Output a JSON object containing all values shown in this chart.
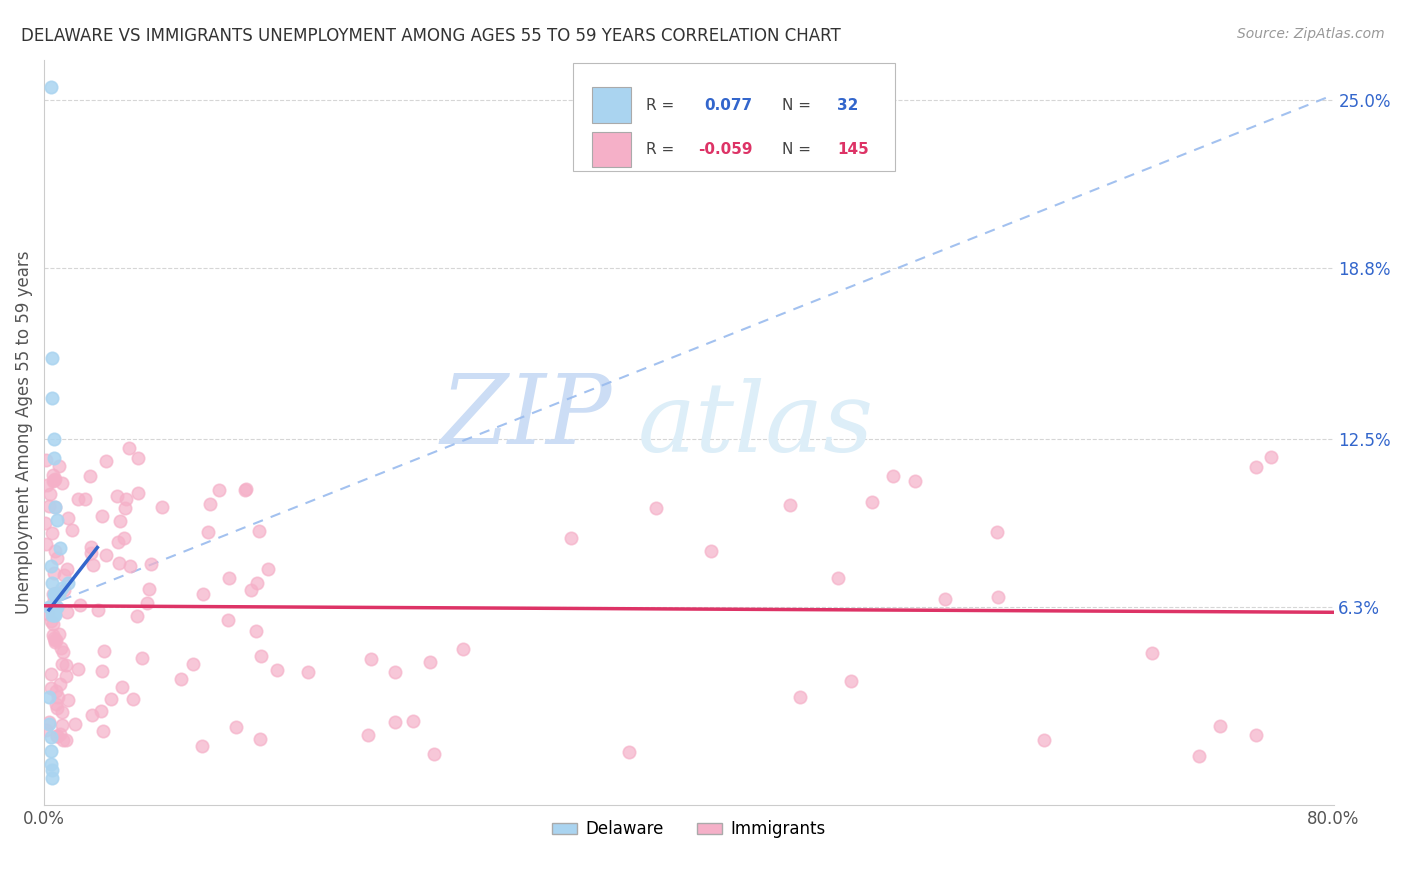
{
  "title": "DELAWARE VS IMMIGRANTS UNEMPLOYMENT AMONG AGES 55 TO 59 YEARS CORRELATION CHART",
  "source": "Source: ZipAtlas.com",
  "ylabel": "Unemployment Among Ages 55 to 59 years",
  "xlim": [
    0,
    0.8
  ],
  "ylim": [
    -0.01,
    0.265
  ],
  "right_yticks": [
    0.063,
    0.125,
    0.188,
    0.25
  ],
  "right_yticklabels": [
    "6.3%",
    "12.5%",
    "18.8%",
    "25.0%"
  ],
  "delaware_R": 0.077,
  "delaware_N": 32,
  "immigrants_R": -0.059,
  "immigrants_N": 145,
  "delaware_color": "#aad4f0",
  "immigrants_color": "#f5b0c8",
  "delaware_trend_color": "#3366cc",
  "immigrants_trend_color": "#dd3366",
  "dash_line_color": "#99bbee",
  "watermark_ZIP": "ZIP",
  "watermark_atlas": "atlas",
  "watermark_color": "#ddeeff"
}
